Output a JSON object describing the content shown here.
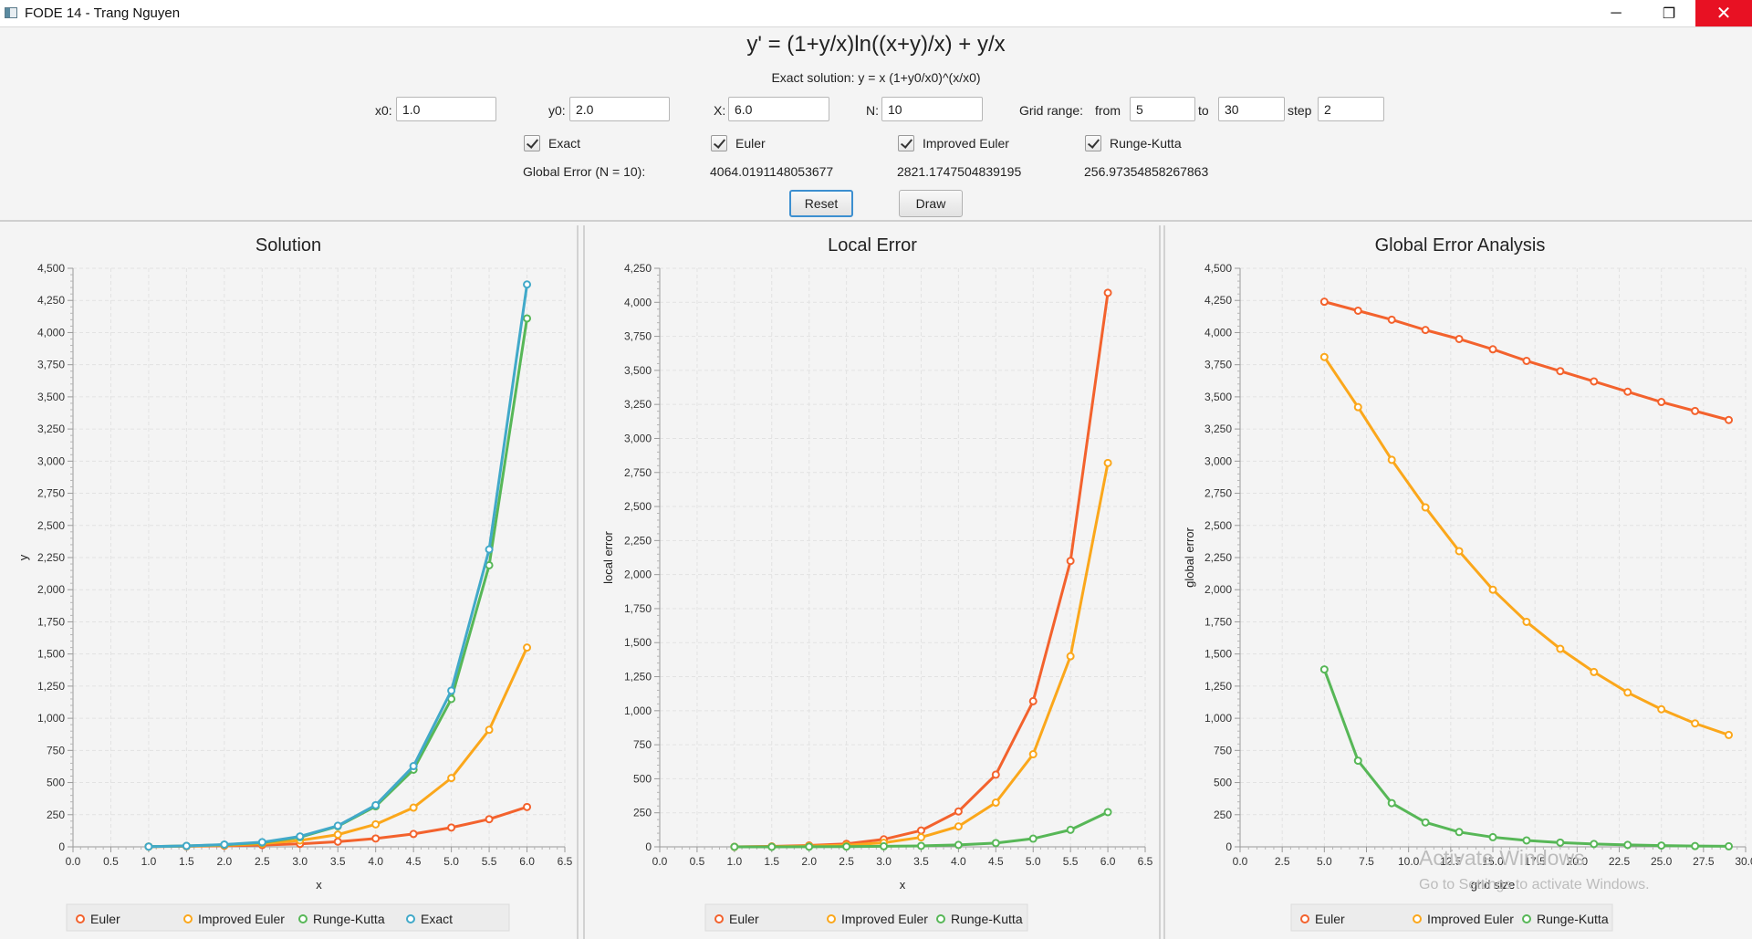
{
  "window": {
    "title": "FODE 14 - Trang Nguyen",
    "minimize": "─",
    "maximize": "❐",
    "close": "✕"
  },
  "header": {
    "equation": "y' = (1+y/x)ln((x+y)/x) + y/x",
    "exact_solution": "Exact solution: y = x (1+y0/x0)^(x/x0)"
  },
  "inputs": {
    "x0": {
      "label": "x0:",
      "value": "1.0"
    },
    "y0": {
      "label": "y0:",
      "value": "2.0"
    },
    "X": {
      "label": "X:",
      "value": "6.0"
    },
    "N": {
      "label": "N:",
      "value": "10"
    },
    "grid": {
      "label": "Grid range:",
      "from_label": "from",
      "from": "5",
      "to_label": "to",
      "to": "30",
      "step_label": "step",
      "step": "2"
    }
  },
  "checkboxes": {
    "exact": "Exact",
    "euler": "Euler",
    "improved_euler": "Improved Euler",
    "runge_kutta": "Runge-Kutta"
  },
  "global_error": {
    "label": "Global Error (N = 10):",
    "euler": "4064.0191148053677",
    "improved_euler": "2821.1747504839195",
    "runge_kutta": "256.97354858267863"
  },
  "buttons": {
    "reset": "Reset",
    "draw": "Draw"
  },
  "watermark": {
    "line1": "Activate Windows",
    "line2": "Go to Settings to activate Windows."
  },
  "colors": {
    "euler": "#f3622d",
    "improved_euler": "#fba71b",
    "runge_kutta": "#57b757",
    "exact": "#41a9c9"
  },
  "chart_data": [
    {
      "id": "solution",
      "type": "line",
      "title": "Solution",
      "xlabel": "x",
      "ylabel": "y",
      "xlim": [
        0,
        6.5
      ],
      "ylim": [
        0,
        4500
      ],
      "xstep": 0.5,
      "ystep": 250,
      "xticks": [
        "0.0",
        "0.5",
        "1.0",
        "1.5",
        "2.0",
        "2.5",
        "3.0",
        "3.5",
        "4.0",
        "4.5",
        "5.0",
        "5.5",
        "6.0",
        "6.5"
      ],
      "yticks": [
        "0",
        "250",
        "500",
        "750",
        "1,000",
        "1,250",
        "1,500",
        "1,750",
        "2,000",
        "2,250",
        "2,500",
        "2,750",
        "3,000",
        "3,250",
        "3,500",
        "3,750",
        "4,000",
        "4,250",
        "4,500"
      ],
      "grid": true,
      "legend": "bottom",
      "x": [
        1.0,
        1.5,
        2.0,
        2.5,
        3.0,
        3.5,
        4.0,
        4.5,
        5.0,
        5.5,
        6.0
      ],
      "series": [
        {
          "name": "Euler",
          "color": "#f3622d",
          "values": [
            2,
            4,
            8,
            14,
            23,
            40,
            65,
            100,
            150,
            215,
            310
          ]
        },
        {
          "name": "Improved Euler",
          "color": "#fba71b",
          "values": [
            2,
            5,
            12,
            25,
            50,
            95,
            175,
            305,
            535,
            910,
            1550
          ]
        },
        {
          "name": "Runge-Kutta",
          "color": "#57b757",
          "values": [
            2,
            7,
            16,
            33,
            75,
            160,
            315,
            600,
            1150,
            2190,
            4110
          ]
        },
        {
          "name": "Exact",
          "color": "#41a9c9",
          "values": [
            2,
            7,
            18,
            36,
            81,
            164,
            324,
            628,
            1215,
            2313,
            4374
          ]
        }
      ]
    },
    {
      "id": "local",
      "type": "line",
      "title": "Local Error",
      "xlabel": "x",
      "ylabel": "local error",
      "xlim": [
        0,
        6.5
      ],
      "ylim": [
        0,
        4250
      ],
      "xstep": 0.5,
      "ystep": 250,
      "xticks": [
        "0.0",
        "0.5",
        "1.0",
        "1.5",
        "2.0",
        "2.5",
        "3.0",
        "3.5",
        "4.0",
        "4.5",
        "5.0",
        "5.5",
        "6.0",
        "6.5"
      ],
      "yticks": [
        "0",
        "250",
        "500",
        "750",
        "1,000",
        "1,250",
        "1,500",
        "1,750",
        "2,000",
        "2,250",
        "2,500",
        "2,750",
        "3,000",
        "3,250",
        "3,500",
        "3,750",
        "4,000",
        "4,250"
      ],
      "grid": true,
      "legend": "bottom",
      "x": [
        1.0,
        1.5,
        2.0,
        2.5,
        3.0,
        3.5,
        4.0,
        4.5,
        5.0,
        5.5,
        6.0
      ],
      "series": [
        {
          "name": "Euler",
          "color": "#f3622d",
          "values": [
            0,
            3,
            10,
            22,
            55,
            120,
            260,
            530,
            1070,
            2100,
            4070
          ]
        },
        {
          "name": "Improved Euler",
          "color": "#fba71b",
          "values": [
            0,
            2,
            6,
            12,
            30,
            70,
            150,
            325,
            680,
            1400,
            2820
          ]
        },
        {
          "name": "Runge-Kutta",
          "color": "#57b757",
          "values": [
            0,
            0,
            1,
            2,
            4,
            7,
            14,
            28,
            60,
            125,
            255
          ]
        }
      ]
    },
    {
      "id": "global",
      "type": "line",
      "title": "Global Error Analysis",
      "xlabel": "grid size",
      "ylabel": "global error",
      "xlim": [
        0,
        30
      ],
      "ylim": [
        0,
        4500
      ],
      "xstep": 2.5,
      "ystep": 250,
      "xticks": [
        "0.0",
        "2.5",
        "5.0",
        "7.5",
        "10.0",
        "12.5",
        "15.0",
        "17.5",
        "20.0",
        "22.5",
        "25.0",
        "27.5",
        "30.0"
      ],
      "yticks": [
        "0",
        "250",
        "500",
        "750",
        "1,000",
        "1,250",
        "1,500",
        "1,750",
        "2,000",
        "2,250",
        "2,500",
        "2,750",
        "3,000",
        "3,250",
        "3,500",
        "3,750",
        "4,000",
        "4,250",
        "4,500"
      ],
      "grid": true,
      "legend": "bottom",
      "x": [
        5,
        7,
        9,
        11,
        13,
        15,
        17,
        19,
        21,
        23,
        25,
        27,
        29
      ],
      "series": [
        {
          "name": "Euler",
          "color": "#f3622d",
          "values": [
            4240,
            4170,
            4100,
            4020,
            3950,
            3870,
            3780,
            3700,
            3620,
            3540,
            3460,
            3390,
            3320
          ]
        },
        {
          "name": "Improved Euler",
          "color": "#fba71b",
          "values": [
            3810,
            3420,
            3010,
            2640,
            2300,
            2000,
            1750,
            1540,
            1360,
            1200,
            1070,
            960,
            870
          ]
        },
        {
          "name": "Runge-Kutta",
          "color": "#57b757",
          "values": [
            1380,
            670,
            340,
            190,
            115,
            75,
            50,
            33,
            22,
            15,
            10,
            6,
            4
          ]
        }
      ]
    }
  ]
}
